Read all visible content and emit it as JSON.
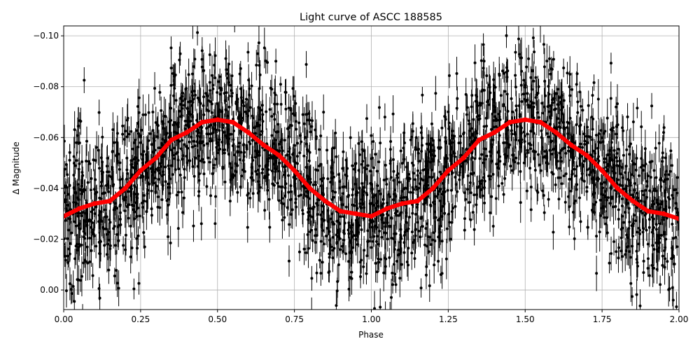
{
  "chart_data": {
    "type": "scatter",
    "title": "Light curve of ASCC 188585",
    "xlabel": "Phase",
    "ylabel": "Δ Magnitude",
    "xlim": [
      0,
      2
    ],
    "ylim": [
      0.0077,
      -0.1039
    ],
    "y_inverted": true,
    "grid": true,
    "xticks": [
      "0.00",
      "0.25",
      "0.50",
      "0.75",
      "1.00",
      "1.25",
      "1.50",
      "1.75",
      "2.00"
    ],
    "xtick_values": [
      0,
      0.25,
      0.5,
      0.75,
      1,
      1.25,
      1.5,
      1.75,
      2
    ],
    "yticks": [
      "−0.10",
      "−0.08",
      "−0.06",
      "−0.04",
      "−0.02",
      "0.00"
    ],
    "ytick_values": [
      -0.1,
      -0.08,
      -0.06,
      -0.04,
      -0.02,
      0.0
    ],
    "colors": {
      "points": "#000000",
      "binned_curve": "#ff0000",
      "grid": "#b0b0b0"
    },
    "series": [
      {
        "style": "black points with error bars",
        "description_only": true
      },
      {
        "style": "red binned mean curve",
        "x": [
          0,
          0.05,
          0.1,
          0.15,
          0.2,
          0.25,
          0.3,
          0.35,
          0.4,
          0.45,
          0.5,
          0.55,
          0.6,
          0.65,
          0.7,
          0.75,
          0.8,
          0.85,
          0.9,
          0.95,
          1.0,
          1.05,
          1.1,
          1.15,
          1.2,
          1.25,
          1.3,
          1.35,
          1.4,
          1.45,
          1.5,
          1.55,
          1.6,
          1.65,
          1.7,
          1.75,
          1.8,
          1.85,
          1.9,
          1.95,
          2.0
        ],
        "y": [
          -0.029,
          -0.032,
          -0.034,
          -0.035,
          -0.04,
          -0.047,
          -0.052,
          -0.059,
          -0.062,
          -0.066,
          -0.067,
          -0.066,
          -0.062,
          -0.057,
          -0.053,
          -0.047,
          -0.04,
          -0.035,
          -0.031,
          -0.03,
          -0.029,
          -0.032,
          -0.034,
          -0.035,
          -0.04,
          -0.047,
          -0.052,
          -0.059,
          -0.062,
          -0.066,
          -0.067,
          -0.066,
          -0.062,
          -0.057,
          -0.053,
          -0.047,
          -0.04,
          -0.035,
          -0.031,
          -0.03,
          -0.028
        ]
      }
    ]
  }
}
